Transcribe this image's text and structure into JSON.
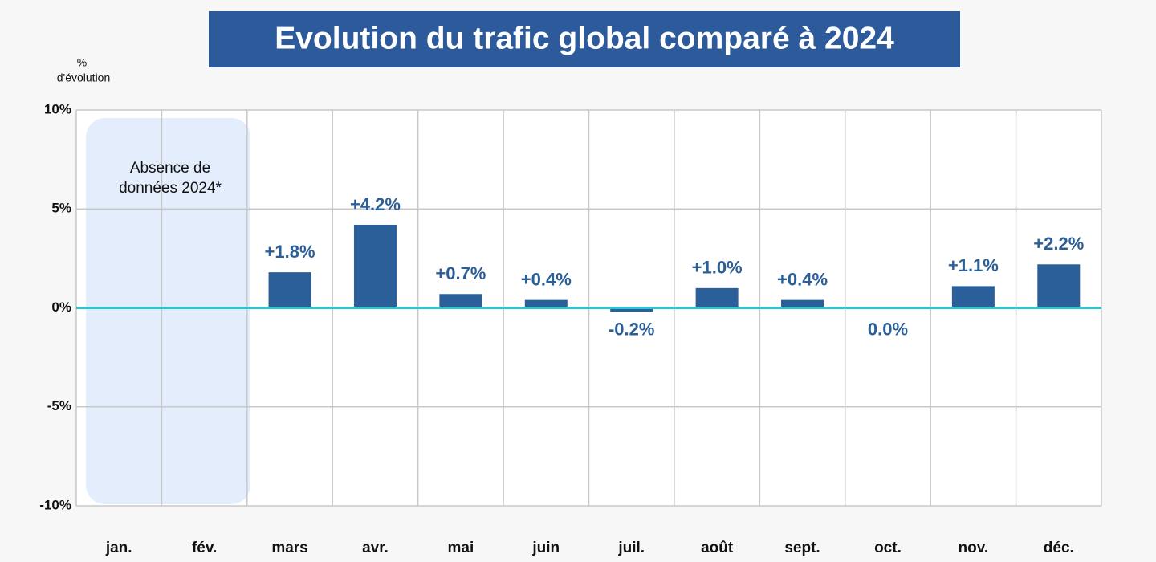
{
  "chart_data": {
    "type": "bar",
    "title": "Evolution du trafic global comparé à 2024",
    "y_label": [
      "%",
      "d'évolution"
    ],
    "annotation": [
      "Absence de",
      "données 2024*"
    ],
    "categories": [
      "jan.",
      "fév.",
      "mars",
      "avr.",
      "mai",
      "juin",
      "juil.",
      "août",
      "sept.",
      "oct.",
      "nov.",
      "déc."
    ],
    "values": [
      null,
      null,
      1.8,
      4.2,
      0.7,
      0.4,
      -0.2,
      1.0,
      0.4,
      0.0,
      1.1,
      2.2
    ],
    "value_labels": [
      null,
      null,
      "+1.8%",
      "+4.2%",
      "+0.7%",
      "+0.4%",
      "-0.2%",
      "+1.0%",
      "+0.4%",
      "0.0%",
      "+1.1%",
      "+2.2%"
    ],
    "color": "#2b5f9a",
    "zero_line_color": "#2ec4d0",
    "ylim": [
      -10,
      10
    ],
    "yticks": [
      {
        "value": -10,
        "label": "-10%"
      },
      {
        "value": -5,
        "label": "-5%"
      },
      {
        "value": 0,
        "label": "0%"
      },
      {
        "value": 5,
        "label": "5%"
      },
      {
        "value": 10,
        "label": "10%"
      }
    ],
    "grid": true
  }
}
